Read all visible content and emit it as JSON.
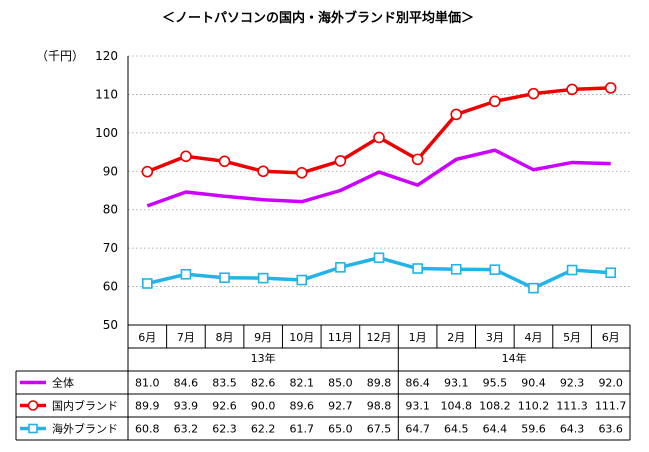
{
  "chart_data": {
    "type": "line",
    "title": "＜ノートパソコンの国内・海外ブランド別平均単価＞",
    "ylabel": "（千円）",
    "ylim": [
      50,
      120
    ],
    "yticks": [
      50,
      60,
      70,
      80,
      90,
      100,
      110,
      120
    ],
    "categories": [
      "6月",
      "7月",
      "8月",
      "9月",
      "10月",
      "11月",
      "12月",
      "1月",
      "2月",
      "3月",
      "4月",
      "5月",
      "6月"
    ],
    "year_groups": [
      {
        "label": "13年",
        "start": 0,
        "end": 6
      },
      {
        "label": "14年",
        "start": 7,
        "end": 12
      }
    ],
    "series": [
      {
        "name": "全体",
        "color": "#cc00ff",
        "marker": "none",
        "values": [
          81.0,
          84.6,
          83.5,
          82.6,
          82.1,
          85.0,
          89.8,
          86.4,
          93.1,
          95.5,
          90.4,
          92.3,
          92.0
        ],
        "labels": [
          "81.0",
          "84.6",
          "83.5",
          "82.6",
          "82.1",
          "85.0",
          "89.8",
          "86.4",
          "93.1",
          "95.5",
          "90.4",
          "92.3",
          "92.0"
        ]
      },
      {
        "name": "国内ブランド",
        "color": "#ee0000",
        "marker": "circle",
        "values": [
          89.9,
          93.9,
          92.6,
          90.0,
          89.6,
          92.7,
          98.8,
          93.1,
          104.8,
          108.2,
          110.2,
          111.3,
          111.7
        ],
        "labels": [
          "89.9",
          "93.9",
          "92.6",
          "90.0",
          "89.6",
          "92.7",
          "98.8",
          "93.1",
          "104.8",
          "108.2",
          "110.2",
          "111.3",
          "111.7"
        ]
      },
      {
        "name": "海外ブランド",
        "color": "#22b4e6",
        "marker": "square",
        "values": [
          60.8,
          63.2,
          62.3,
          62.2,
          61.7,
          65.0,
          67.5,
          64.7,
          64.5,
          64.4,
          59.6,
          64.3,
          63.6
        ],
        "labels": [
          "60.8",
          "63.2",
          "62.3",
          "62.2",
          "61.7",
          "65.0",
          "67.5",
          "64.7",
          "64.5",
          "64.4",
          "59.6",
          "64.3",
          "63.6"
        ]
      }
    ],
    "grid": true
  }
}
